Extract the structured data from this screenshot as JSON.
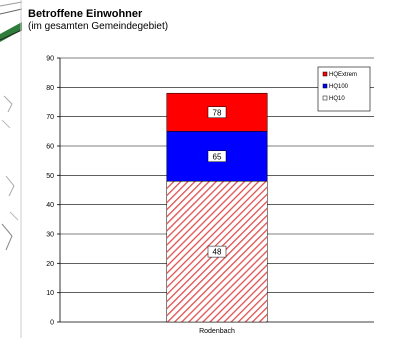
{
  "title": "Betroffene Einwohner",
  "subtitle": "(im gesamten Gemeindegebiet)",
  "chart_data": {
    "type": "bar",
    "stacked": true,
    "categories": [
      "Rodenbach"
    ],
    "series": [
      {
        "name": "HQ10",
        "values": [
          48
        ],
        "label": "48",
        "color": "#e05050",
        "pattern": "hatched"
      },
      {
        "name": "HQ100",
        "values": [
          17
        ],
        "label": "65",
        "color": "#0000ff"
      },
      {
        "name": "HQExtrem",
        "values": [
          13
        ],
        "label": "78",
        "color": "#ff0000"
      }
    ],
    "legend_order": [
      "HQExtrem",
      "HQ100",
      "HQ10"
    ],
    "legend_position": "top-right",
    "ylim": [
      0,
      90
    ],
    "yticks": [
      0,
      10,
      20,
      30,
      40,
      50,
      60,
      70,
      80,
      90
    ],
    "grid": true,
    "xlabel": "",
    "ylabel": ""
  }
}
